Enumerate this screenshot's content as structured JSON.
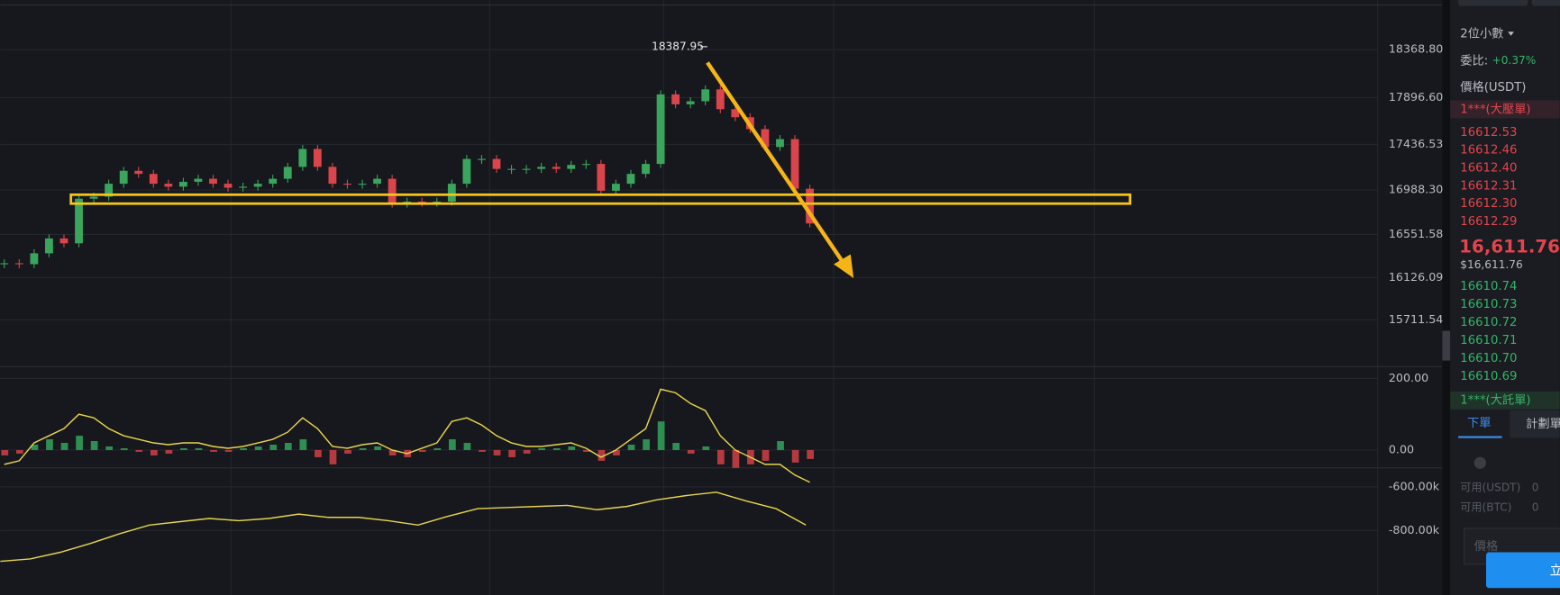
{
  "chart_data": [
    {
      "type": "candlestick",
      "values": [
        16268,
        16259,
        16366,
        16512,
        16464,
        16903,
        16923,
        17050,
        17177,
        17147,
        17050,
        17021,
        17069,
        17099,
        17050,
        17011,
        17021,
        17050,
        17099,
        17216,
        17392,
        17216,
        17050,
        17040,
        17050,
        17099,
        16854,
        16874,
        16864,
        16874,
        17050,
        17294,
        17294,
        17196,
        17196,
        17196,
        17216,
        17196,
        17235,
        17245,
        16981,
        17050,
        17147,
        17245,
        17929,
        17831,
        17861,
        17978,
        17783,
        17704,
        17587,
        17411,
        17489,
        17001,
        16659
      ],
      "up_color": "#3aa55d",
      "down_color": "#d9454b",
      "ylim": [
        15262,
        18857
      ],
      "yticks": [
        {
          "value": 18368.8,
          "label": "18368.80"
        },
        {
          "value": 17896.6,
          "label": "17896.60"
        },
        {
          "value": 17436.53,
          "label": "17436.53"
        },
        {
          "value": 16988.3,
          "label": "16988.30"
        },
        {
          "value": 16551.58,
          "label": "16551.58"
        },
        {
          "value": 16126.09,
          "label": "16126.09"
        },
        {
          "value": 15711.54,
          "label": "15711.54"
        }
      ],
      "annotation": "18387.95"
    },
    {
      "type": "macd",
      "bars": [
        -15,
        -10,
        15,
        30,
        20,
        40,
        25,
        10,
        5,
        -5,
        -15,
        -10,
        5,
        5,
        -5,
        -5,
        5,
        10,
        15,
        20,
        30,
        -20,
        -40,
        -10,
        5,
        10,
        -15,
        -20,
        -5,
        5,
        30,
        20,
        -5,
        -15,
        -20,
        -10,
        5,
        5,
        10,
        -5,
        -30,
        -15,
        15,
        30,
        80,
        20,
        -10,
        10,
        -40,
        -50,
        -40,
        -30,
        25,
        -35,
        -25
      ],
      "line": [
        -40,
        -30,
        20,
        40,
        60,
        100,
        90,
        60,
        40,
        30,
        20,
        15,
        20,
        20,
        10,
        5,
        10,
        20,
        30,
        50,
        90,
        60,
        10,
        5,
        15,
        20,
        0,
        -10,
        5,
        20,
        80,
        90,
        70,
        40,
        20,
        10,
        10,
        15,
        20,
        5,
        -20,
        0,
        30,
        60,
        170,
        160,
        130,
        110,
        40,
        0,
        -20,
        -40,
        -40,
        -70,
        -90
      ],
      "line_color": "#e8d44d",
      "ylim": [
        -47,
        230.6
      ],
      "yticks": [
        {
          "value": 200,
          "label": "200.00"
        },
        {
          "value": 0,
          "label": "0.00"
        }
      ]
    },
    {
      "type": "line",
      "values": [
        -941000,
        -930000,
        -900000,
        -860000,
        -815000,
        -775000,
        -760000,
        -745000,
        -755000,
        -745000,
        -725000,
        -740000,
        -740000,
        -755000,
        -775000,
        -735000,
        -700000,
        -695000,
        -690000,
        -685000,
        -705000,
        -690000,
        -660000,
        -640000,
        -625000,
        -665000,
        -700000,
        -775000
      ],
      "color": "#e8d44d",
      "ylim": [
        -1095000,
        -518000
      ],
      "yticks": [
        {
          "value": -600000,
          "label": "-600.00k"
        },
        {
          "value": -800000,
          "label": "-800.00k"
        }
      ]
    }
  ],
  "order_book": {
    "precision": "2位小數",
    "ratio_label": "委比:",
    "ratio": "+0.37%",
    "price_header": "價格(USDT)",
    "big_ask": "1***(大壓單)",
    "asks": [
      "16612.53",
      "16612.46",
      "16612.40",
      "16612.31",
      "16612.30",
      "16612.29"
    ],
    "last_price": "16,611.76",
    "last_price_usd": "$16,611.76",
    "bids": [
      "16610.74",
      "16610.73",
      "16610.72",
      "16610.71",
      "16610.70",
      "16610.69"
    ],
    "big_bid": "1***(大託單)",
    "tabs": [
      "下單",
      "計劃單"
    ],
    "available_usdt": "可用(USDT)",
    "available_usdt_value": "0",
    "available_btc": "可用(BTC)",
    "available_btc_value": "0",
    "price_input": "價格",
    "button": "立"
  }
}
